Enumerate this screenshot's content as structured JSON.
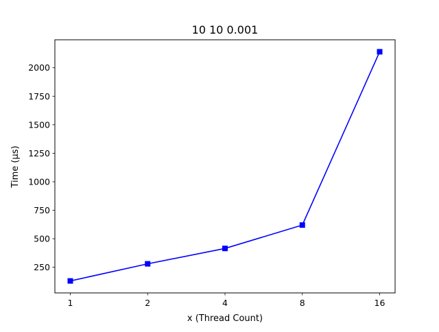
{
  "chart_data": {
    "type": "line",
    "title": "10 10 0.001",
    "xlabel": "x (Thread Count)",
    "ylabel": "Time (µs)",
    "categories": [
      "1",
      "2",
      "4",
      "8",
      "16"
    ],
    "series": [
      {
        "values": [
          130,
          280,
          415,
          620,
          2140
        ]
      }
    ],
    "ylim": [
      25,
      2245
    ],
    "yticks": [
      250,
      500,
      750,
      1000,
      1250,
      1500,
      1750,
      2000
    ],
    "line_color": "#0000ff",
    "marker": "square",
    "grid": false,
    "legend": "none"
  }
}
